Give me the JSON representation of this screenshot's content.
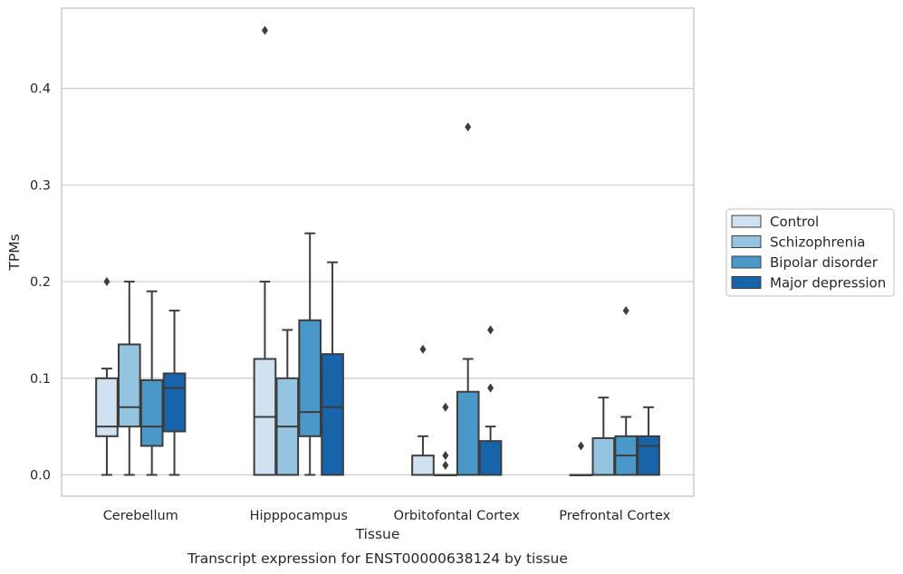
{
  "chart_data": {
    "type": "boxplot",
    "xlabel": "Tissue",
    "ylabel": "TPMs",
    "caption": "Transcript expression for ENST00000638124 by tissue",
    "ylim": [
      -0.022,
      0.483
    ],
    "yticks": [
      0.0,
      0.1,
      0.2,
      0.3,
      0.4
    ],
    "ytick_labels": [
      "0.0",
      "0.1",
      "0.2",
      "0.3",
      "0.4"
    ],
    "grid": "horizontal",
    "legend_position": "right",
    "categories": [
      "Cerebellum",
      "Hipppocampus",
      "Orbitofontal Cortex",
      "Prefrontal Cortex"
    ],
    "series": [
      {
        "name": "Control",
        "color": "#d0e1f2",
        "boxes": [
          {
            "whisker_low": 0.0,
            "q1": 0.04,
            "median": 0.05,
            "q3": 0.1,
            "whisker_high": 0.11,
            "outliers": [
              0.2
            ]
          },
          {
            "whisker_low": 0.0,
            "q1": 0.0,
            "median": 0.06,
            "q3": 0.12,
            "whisker_high": 0.2,
            "outliers": [
              0.46
            ]
          },
          {
            "whisker_low": 0.0,
            "q1": 0.0,
            "median": 0.0,
            "q3": 0.02,
            "whisker_high": 0.04,
            "outliers": [
              0.13
            ]
          },
          {
            "whisker_low": 0.0,
            "q1": 0.0,
            "median": 0.0,
            "q3": 0.0,
            "whisker_high": 0.0,
            "outliers": [
              0.03
            ]
          }
        ]
      },
      {
        "name": "Schizophrenia",
        "color": "#94c4df",
        "boxes": [
          {
            "whisker_low": 0.0,
            "q1": 0.05,
            "median": 0.07,
            "q3": 0.135,
            "whisker_high": 0.2,
            "outliers": []
          },
          {
            "whisker_low": 0.0,
            "q1": 0.0,
            "median": 0.05,
            "q3": 0.1,
            "whisker_high": 0.15,
            "outliers": []
          },
          {
            "whisker_low": 0.0,
            "q1": 0.0,
            "median": 0.0,
            "q3": 0.0,
            "whisker_high": 0.0,
            "outliers": [
              0.07,
              0.02,
              0.01
            ]
          },
          {
            "whisker_low": 0.0,
            "q1": 0.0,
            "median": 0.0,
            "q3": 0.038,
            "whisker_high": 0.08,
            "outliers": []
          }
        ]
      },
      {
        "name": "Bipolar disorder",
        "color": "#4a98c9",
        "boxes": [
          {
            "whisker_low": 0.0,
            "q1": 0.03,
            "median": 0.05,
            "q3": 0.098,
            "whisker_high": 0.19,
            "outliers": []
          },
          {
            "whisker_low": 0.0,
            "q1": 0.04,
            "median": 0.065,
            "q3": 0.16,
            "whisker_high": 0.25,
            "outliers": []
          },
          {
            "whisker_low": 0.0,
            "q1": 0.0,
            "median": 0.0,
            "q3": 0.086,
            "whisker_high": 0.12,
            "outliers": [
              0.36
            ]
          },
          {
            "whisker_low": 0.0,
            "q1": 0.0,
            "median": 0.02,
            "q3": 0.04,
            "whisker_high": 0.06,
            "outliers": [
              0.17
            ]
          }
        ]
      },
      {
        "name": "Major depression",
        "color": "#1764ab",
        "boxes": [
          {
            "whisker_low": 0.0,
            "q1": 0.045,
            "median": 0.09,
            "q3": 0.105,
            "whisker_high": 0.17,
            "outliers": []
          },
          {
            "whisker_low": 0.0,
            "q1": 0.0,
            "median": 0.07,
            "q3": 0.125,
            "whisker_high": 0.22,
            "outliers": []
          },
          {
            "whisker_low": 0.0,
            "q1": 0.0,
            "median": 0.0,
            "q3": 0.035,
            "whisker_high": 0.05,
            "outliers": [
              0.15,
              0.09
            ]
          },
          {
            "whisker_low": 0.0,
            "q1": 0.0,
            "median": 0.03,
            "q3": 0.04,
            "whisker_high": 0.07,
            "outliers": []
          }
        ]
      }
    ]
  }
}
